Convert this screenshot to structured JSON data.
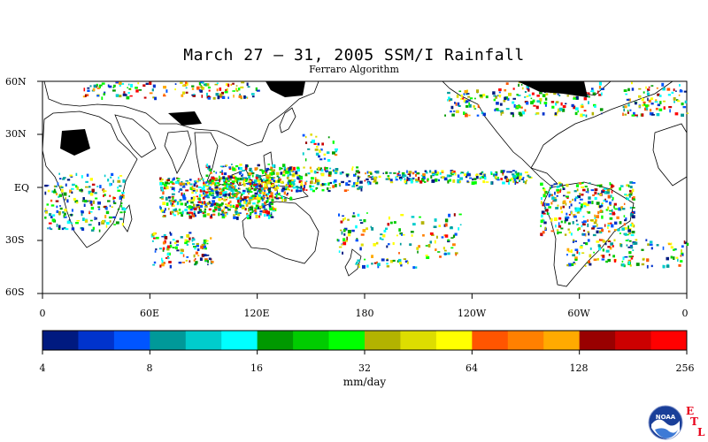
{
  "title": "March 27 – 31, 2005 SSM/I Rainfall",
  "subtitle": "Ferraro Algorithm",
  "lat_labels": [
    "60N",
    "30N",
    "EQ",
    "30S",
    "60S"
  ],
  "lon_labels": [
    "0",
    "60E",
    "120E",
    "180",
    "120W",
    "60W",
    "0"
  ],
  "colorbar": {
    "colors": [
      "#001a80",
      "#0033cc",
      "#0055ff",
      "#009999",
      "#00cccc",
      "#00ffff",
      "#009900",
      "#00cc00",
      "#00ff00",
      "#b3b300",
      "#dddd00",
      "#ffff00",
      "#ff5500",
      "#ff8000",
      "#ffaa00",
      "#990000",
      "#cc0000",
      "#ff0000"
    ],
    "tick_labels": [
      "4",
      "8",
      "16",
      "32",
      "64",
      "128",
      "256"
    ],
    "units": "mm/day"
  },
  "logo": {
    "text": "NOAA",
    "letters": [
      "E",
      "T",
      "L"
    ]
  }
}
